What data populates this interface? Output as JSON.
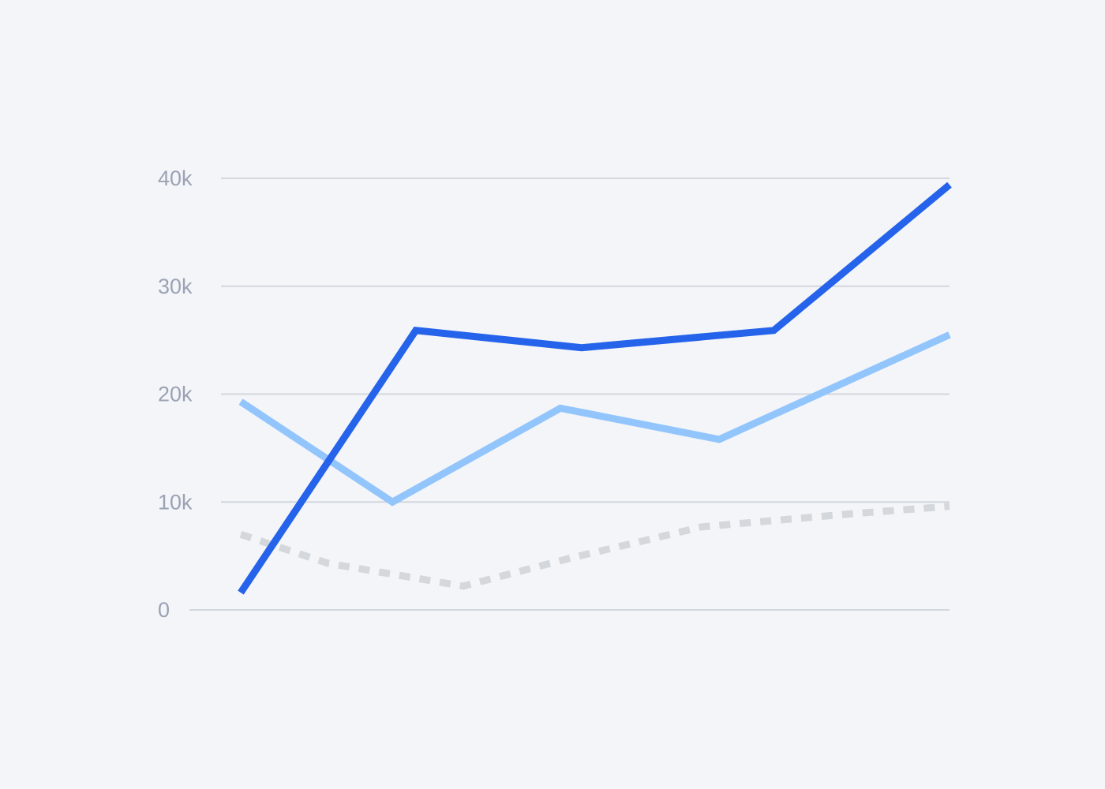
{
  "chart_data": {
    "type": "line",
    "title": "",
    "xlabel": "",
    "ylabel": "",
    "ylim": [
      0,
      40000
    ],
    "yticks": [
      {
        "value": 0,
        "label": "0"
      },
      {
        "value": 10000,
        "label": "10k"
      },
      {
        "value": 20000,
        "label": "20k"
      },
      {
        "value": 30000,
        "label": "30k"
      },
      {
        "value": 40000,
        "label": "40k"
      }
    ],
    "xlim": [
      0,
      1
    ],
    "grid": true,
    "legend": "none",
    "series": [
      {
        "color": "#2563eb",
        "style": "solid",
        "points": [
          {
            "x": 0.0,
            "y": 1600
          },
          {
            "x": 0.247,
            "y": 25900
          },
          {
            "x": 0.481,
            "y": 24300
          },
          {
            "x": 0.752,
            "y": 25900
          },
          {
            "x": 1.0,
            "y": 39400
          }
        ]
      },
      {
        "color": "#93c5fd",
        "style": "solid",
        "points": [
          {
            "x": 0.0,
            "y": 19300
          },
          {
            "x": 0.214,
            "y": 10000
          },
          {
            "x": 0.451,
            "y": 18700
          },
          {
            "x": 0.675,
            "y": 15800
          },
          {
            "x": 1.0,
            "y": 25500
          }
        ]
      },
      {
        "color": "#d4d7dc",
        "style": "dotted",
        "points": [
          {
            "x": 0.0,
            "y": 7000
          },
          {
            "x": 0.124,
            "y": 4300
          },
          {
            "x": 0.314,
            "y": 2200
          },
          {
            "x": 0.465,
            "y": 4800
          },
          {
            "x": 0.651,
            "y": 7700
          },
          {
            "x": 0.86,
            "y": 8900
          },
          {
            "x": 1.0,
            "y": 9600
          }
        ]
      }
    ]
  }
}
